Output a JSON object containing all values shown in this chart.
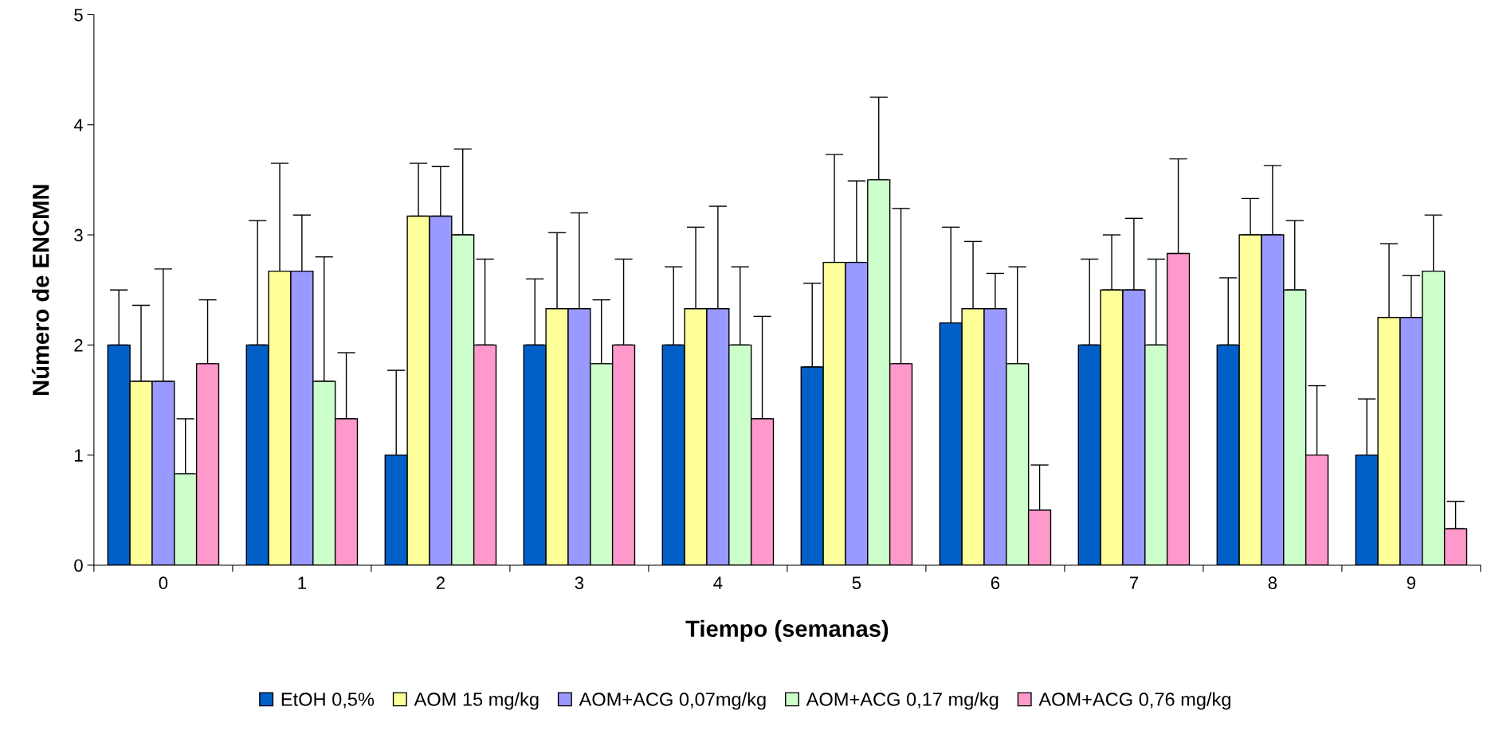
{
  "chart_data": {
    "type": "bar",
    "xlabel": "Tiempo (semanas)",
    "ylabel": "Número de ENCMN",
    "categories": [
      "0",
      "1",
      "2",
      "3",
      "4",
      "5",
      "6",
      "7",
      "8",
      "9"
    ],
    "ylim": [
      0,
      5
    ],
    "yticks": [
      0,
      1,
      2,
      3,
      4,
      5
    ],
    "grid": false,
    "legend": "bottom",
    "series": [
      {
        "name": "EtOH 0,5%",
        "color": "#0060c8",
        "values": [
          2.0,
          2.0,
          1.0,
          2.0,
          2.0,
          1.8,
          2.2,
          2.0,
          2.0,
          1.0
        ],
        "errors": [
          [
            2.0,
            2.5
          ],
          [
            2.0,
            3.13
          ],
          [
            1.0,
            1.77
          ],
          [
            2.0,
            2.6
          ],
          [
            2.0,
            2.71
          ],
          [
            1.8,
            2.56
          ],
          [
            2.2,
            3.07
          ],
          [
            2.0,
            2.78
          ],
          [
            2.0,
            2.61
          ],
          [
            1.0,
            1.51
          ]
        ]
      },
      {
        "name": "AOM 15 mg/kg",
        "color": "#ffff99",
        "values": [
          1.67,
          2.67,
          3.17,
          2.33,
          2.33,
          2.75,
          2.33,
          2.5,
          3.0,
          2.25
        ],
        "errors": [
          [
            1.67,
            2.36
          ],
          [
            2.67,
            3.65
          ],
          [
            3.17,
            3.65
          ],
          [
            2.33,
            3.02
          ],
          [
            2.33,
            3.07
          ],
          [
            2.75,
            3.73
          ],
          [
            2.33,
            2.94
          ],
          [
            2.5,
            3.0
          ],
          [
            3.0,
            3.33
          ],
          [
            2.25,
            2.92
          ]
        ]
      },
      {
        "name": "AOM+ACG 0,07mg/kg",
        "color": "#9999ff",
        "values": [
          1.67,
          2.67,
          3.17,
          2.33,
          2.33,
          2.75,
          2.33,
          2.5,
          3.0,
          2.25
        ],
        "errors": [
          [
            1.67,
            2.69
          ],
          [
            2.67,
            3.18
          ],
          [
            3.17,
            3.62
          ],
          [
            2.33,
            3.2
          ],
          [
            2.33,
            3.26
          ],
          [
            2.75,
            3.49
          ],
          [
            2.33,
            2.65
          ],
          [
            2.5,
            3.15
          ],
          [
            3.0,
            3.63
          ],
          [
            2.25,
            2.63
          ]
        ]
      },
      {
        "name": "AOM+ACG 0,17 mg/kg",
        "color": "#ccffcc",
        "values": [
          0.83,
          1.67,
          3.0,
          1.83,
          2.0,
          3.5,
          1.83,
          2.0,
          2.5,
          2.67
        ],
        "errors": [
          [
            0.83,
            1.33
          ],
          [
            1.67,
            2.8
          ],
          [
            3.0,
            3.78
          ],
          [
            1.83,
            2.41
          ],
          [
            2.0,
            2.71
          ],
          [
            3.5,
            4.25
          ],
          [
            1.83,
            2.71
          ],
          [
            2.0,
            2.78
          ],
          [
            2.5,
            3.13
          ],
          [
            2.67,
            3.18
          ]
        ]
      },
      {
        "name": "AOM+ACG 0,76 mg/kg",
        "color": "#ff99cc",
        "values": [
          1.83,
          1.33,
          2.0,
          2.0,
          1.33,
          1.83,
          0.5,
          2.83,
          1.0,
          0.33
        ],
        "errors": [
          [
            1.83,
            2.41
          ],
          [
            1.33,
            1.93
          ],
          [
            2.0,
            2.78
          ],
          [
            2.0,
            2.78
          ],
          [
            1.33,
            2.26
          ],
          [
            1.83,
            3.24
          ],
          [
            0.5,
            0.91
          ],
          [
            2.83,
            3.69
          ],
          [
            1.0,
            1.63
          ],
          [
            0.33,
            0.58
          ]
        ]
      }
    ]
  }
}
